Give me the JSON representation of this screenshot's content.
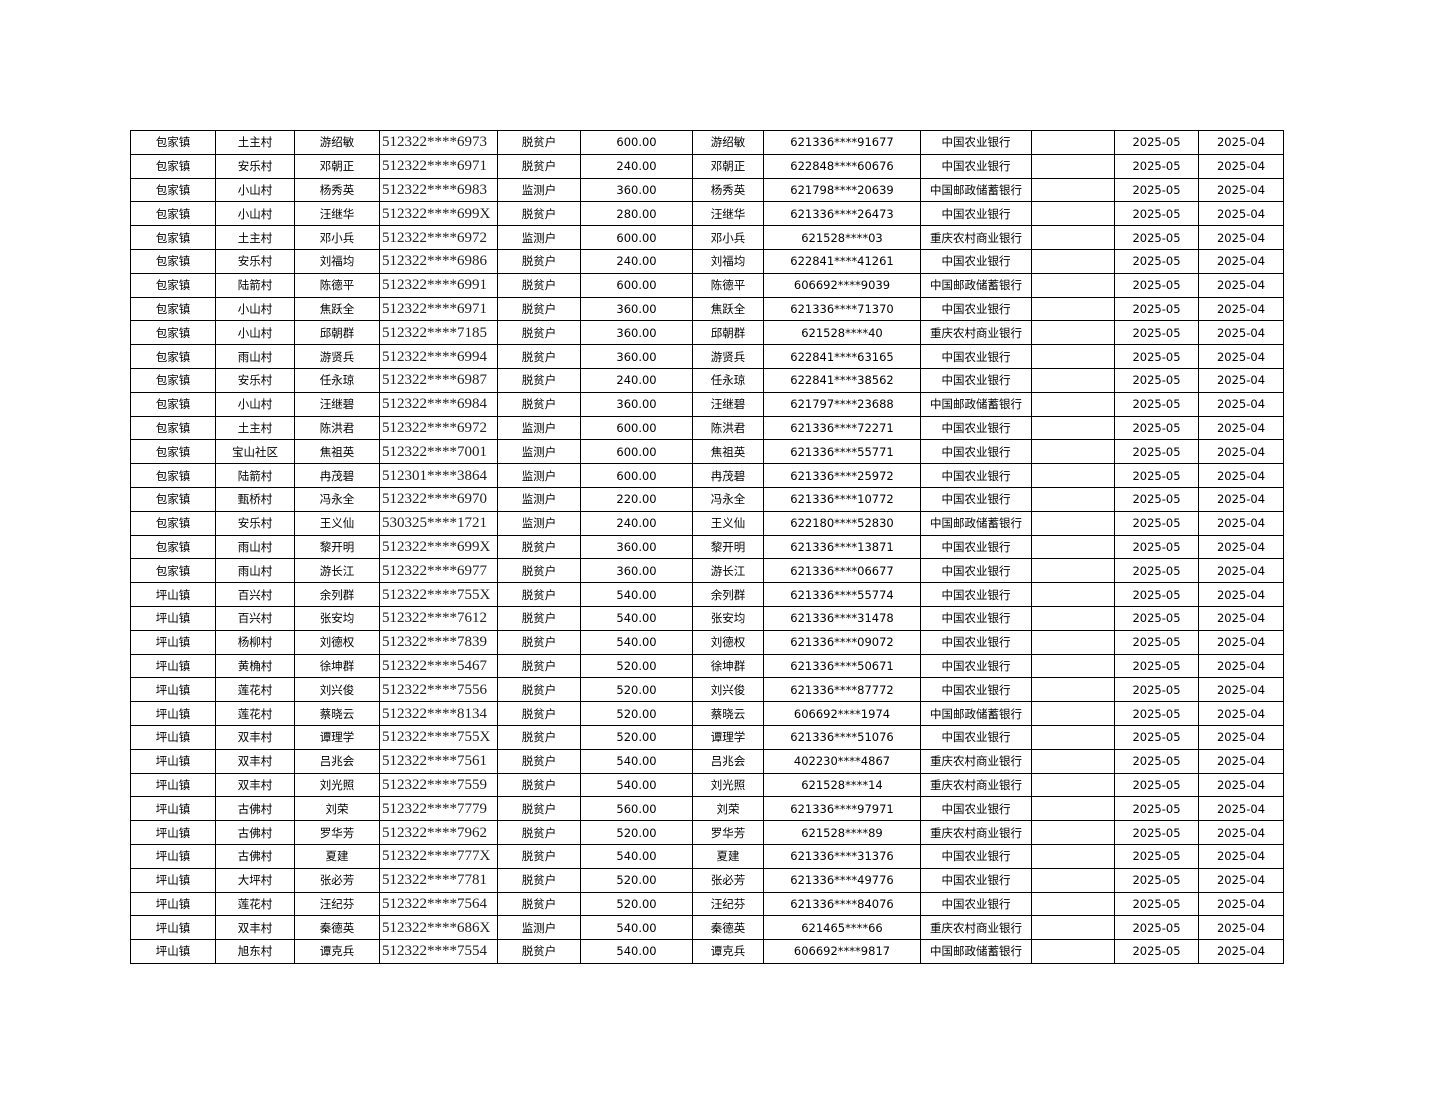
{
  "table": {
    "rows": [
      [
        "包家镇",
        "土主村",
        "游绍敏",
        "512322****6973",
        "脱贫户",
        "600.00",
        "游绍敏",
        "621336****91677",
        "中国农业银行",
        "",
        "2025-05",
        "2025-04"
      ],
      [
        "包家镇",
        "安乐村",
        "邓朝正",
        "512322****6971",
        "脱贫户",
        "240.00",
        "邓朝正",
        "622848****60676",
        "中国农业银行",
        "",
        "2025-05",
        "2025-04"
      ],
      [
        "包家镇",
        "小山村",
        "杨秀英",
        "512322****6983",
        "监测户",
        "360.00",
        "杨秀英",
        "621798****20639",
        "中国邮政储蓄银行",
        "",
        "2025-05",
        "2025-04"
      ],
      [
        "包家镇",
        "小山村",
        "汪继华",
        "512322****699X",
        "脱贫户",
        "280.00",
        "汪继华",
        "621336****26473",
        "中国农业银行",
        "",
        "2025-05",
        "2025-04"
      ],
      [
        "包家镇",
        "土主村",
        "邓小兵",
        "512322****6972",
        "监测户",
        "600.00",
        "邓小兵",
        "621528****03",
        "重庆农村商业银行",
        "",
        "2025-05",
        "2025-04"
      ],
      [
        "包家镇",
        "安乐村",
        "刘福均",
        "512322****6986",
        "脱贫户",
        "240.00",
        "刘福均",
        "622841****41261",
        "中国农业银行",
        "",
        "2025-05",
        "2025-04"
      ],
      [
        "包家镇",
        "陆箭村",
        "陈德平",
        "512322****6991",
        "脱贫户",
        "600.00",
        "陈德平",
        "606692****9039",
        "中国邮政储蓄银行",
        "",
        "2025-05",
        "2025-04"
      ],
      [
        "包家镇",
        "小山村",
        "焦跃全",
        "512322****6971",
        "脱贫户",
        "360.00",
        "焦跃全",
        "621336****71370",
        "中国农业银行",
        "",
        "2025-05",
        "2025-04"
      ],
      [
        "包家镇",
        "小山村",
        "邱朝群",
        "512322****7185",
        "脱贫户",
        "360.00",
        "邱朝群",
        "621528****40",
        "重庆农村商业银行",
        "",
        "2025-05",
        "2025-04"
      ],
      [
        "包家镇",
        "雨山村",
        "游贤兵",
        "512322****6994",
        "脱贫户",
        "360.00",
        "游贤兵",
        "622841****63165",
        "中国农业银行",
        "",
        "2025-05",
        "2025-04"
      ],
      [
        "包家镇",
        "安乐村",
        "任永琼",
        "512322****6987",
        "脱贫户",
        "240.00",
        "任永琼",
        "622841****38562",
        "中国农业银行",
        "",
        "2025-05",
        "2025-04"
      ],
      [
        "包家镇",
        "小山村",
        "汪继碧",
        "512322****6984",
        "脱贫户",
        "360.00",
        "汪继碧",
        "621797****23688",
        "中国邮政储蓄银行",
        "",
        "2025-05",
        "2025-04"
      ],
      [
        "包家镇",
        "土主村",
        "陈洪君",
        "512322****6972",
        "监测户",
        "600.00",
        "陈洪君",
        "621336****72271",
        "中国农业银行",
        "",
        "2025-05",
        "2025-04"
      ],
      [
        "包家镇",
        "宝山社区",
        "焦祖英",
        "512322****7001",
        "监测户",
        "600.00",
        "焦祖英",
        "621336****55771",
        "中国农业银行",
        "",
        "2025-05",
        "2025-04"
      ],
      [
        "包家镇",
        "陆箭村",
        "冉茂碧",
        "512301****3864",
        "监测户",
        "600.00",
        "冉茂碧",
        "621336****25972",
        "中国农业银行",
        "",
        "2025-05",
        "2025-04"
      ],
      [
        "包家镇",
        "甄桥村",
        "冯永全",
        "512322****6970",
        "监测户",
        "220.00",
        "冯永全",
        "621336****10772",
        "中国农业银行",
        "",
        "2025-05",
        "2025-04"
      ],
      [
        "包家镇",
        "安乐村",
        "王义仙",
        "530325****1721",
        "监测户",
        "240.00",
        "王义仙",
        "622180****52830",
        "中国邮政储蓄银行",
        "",
        "2025-05",
        "2025-04"
      ],
      [
        "包家镇",
        "雨山村",
        "黎开明",
        "512322****699X",
        "脱贫户",
        "360.00",
        "黎开明",
        "621336****13871",
        "中国农业银行",
        "",
        "2025-05",
        "2025-04"
      ],
      [
        "包家镇",
        "雨山村",
        "游长江",
        "512322****6977",
        "脱贫户",
        "360.00",
        "游长江",
        "621336****06677",
        "中国农业银行",
        "",
        "2025-05",
        "2025-04"
      ],
      [
        "坪山镇",
        "百兴村",
        "余列群",
        "512322****755X",
        "脱贫户",
        "540.00",
        "余列群",
        "621336****55774",
        "中国农业银行",
        "",
        "2025-05",
        "2025-04"
      ],
      [
        "坪山镇",
        "百兴村",
        "张安均",
        "512322****7612",
        "脱贫户",
        "540.00",
        "张安均",
        "621336****31478",
        "中国农业银行",
        "",
        "2025-05",
        "2025-04"
      ],
      [
        "坪山镇",
        "杨柳村",
        "刘德权",
        "512322****7839",
        "脱贫户",
        "540.00",
        "刘德权",
        "621336****09072",
        "中国农业银行",
        "",
        "2025-05",
        "2025-04"
      ],
      [
        "坪山镇",
        "黄桷村",
        "徐坤群",
        "512322****5467",
        "脱贫户",
        "520.00",
        "徐坤群",
        "621336****50671",
        "中国农业银行",
        "",
        "2025-05",
        "2025-04"
      ],
      [
        "坪山镇",
        "莲花村",
        "刘兴俊",
        "512322****7556",
        "脱贫户",
        "520.00",
        "刘兴俊",
        "621336****87772",
        "中国农业银行",
        "",
        "2025-05",
        "2025-04"
      ],
      [
        "坪山镇",
        "莲花村",
        "蔡晓云",
        "512322****8134",
        "脱贫户",
        "520.00",
        "蔡晓云",
        "606692****1974",
        "中国邮政储蓄银行",
        "",
        "2025-05",
        "2025-04"
      ],
      [
        "坪山镇",
        "双丰村",
        "谭理学",
        "512322****755X",
        "脱贫户",
        "520.00",
        "谭理学",
        "621336****51076",
        "中国农业银行",
        "",
        "2025-05",
        "2025-04"
      ],
      [
        "坪山镇",
        "双丰村",
        "吕兆会",
        "512322****7561",
        "脱贫户",
        "540.00",
        "吕兆会",
        "402230****4867",
        "重庆农村商业银行",
        "",
        "2025-05",
        "2025-04"
      ],
      [
        "坪山镇",
        "双丰村",
        "刘光照",
        "512322****7559",
        "脱贫户",
        "540.00",
        "刘光照",
        "621528****14",
        "重庆农村商业银行",
        "",
        "2025-05",
        "2025-04"
      ],
      [
        "坪山镇",
        "古佛村",
        "刘荣",
        "512322****7779",
        "脱贫户",
        "560.00",
        "刘荣",
        "621336****97971",
        "中国农业银行",
        "",
        "2025-05",
        "2025-04"
      ],
      [
        "坪山镇",
        "古佛村",
        "罗华芳",
        "512322****7962",
        "脱贫户",
        "520.00",
        "罗华芳",
        "621528****89",
        "重庆农村商业银行",
        "",
        "2025-05",
        "2025-04"
      ],
      [
        "坪山镇",
        "古佛村",
        "夏建",
        "512322****777X",
        "脱贫户",
        "540.00",
        "夏建",
        "621336****31376",
        "中国农业银行",
        "",
        "2025-05",
        "2025-04"
      ],
      [
        "坪山镇",
        "大坪村",
        "张必芳",
        "512322****7781",
        "脱贫户",
        "520.00",
        "张必芳",
        "621336****49776",
        "中国农业银行",
        "",
        "2025-05",
        "2025-04"
      ],
      [
        "坪山镇",
        "莲花村",
        "汪纪芬",
        "512322****7564",
        "脱贫户",
        "520.00",
        "汪纪芬",
        "621336****84076",
        "中国农业银行",
        "",
        "2025-05",
        "2025-04"
      ],
      [
        "坪山镇",
        "双丰村",
        "秦德英",
        "512322****686X",
        "监测户",
        "540.00",
        "秦德英",
        "621465****66",
        "重庆农村商业银行",
        "",
        "2025-05",
        "2025-04"
      ],
      [
        "坪山镇",
        "旭东村",
        "谭克兵",
        "512322****7554",
        "脱贫户",
        "540.00",
        "谭克兵",
        "606692****9817",
        "中国邮政储蓄银行",
        "",
        "2025-05",
        "2025-04"
      ]
    ]
  }
}
